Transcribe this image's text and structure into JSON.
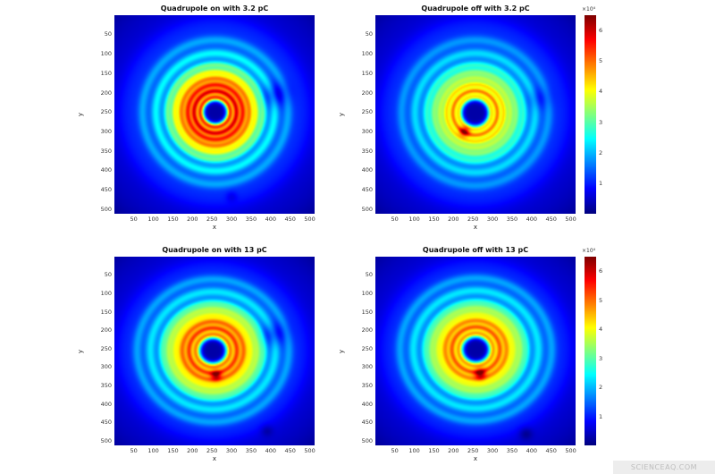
{
  "figure": {
    "background_color": "#ffffff",
    "watermark": "SCIENCEAQ.COM"
  },
  "axes": {
    "x_label": "x",
    "y_label": "y",
    "x_ticks": [
      50,
      100,
      150,
      200,
      250,
      300,
      350,
      400,
      450,
      500
    ],
    "y_ticks": [
      50,
      100,
      150,
      200,
      250,
      300,
      350,
      400,
      450,
      500
    ]
  },
  "colorbar": {
    "exponent_label": "×10⁴",
    "ticks": [
      1,
      2,
      3,
      4,
      5,
      6
    ],
    "range": [
      0,
      6.5
    ]
  },
  "chart_data": {
    "type": "heatmap",
    "colormap": "jet",
    "x_range": [
      1,
      512
    ],
    "y_range": [
      1,
      512
    ],
    "value_scale": 10000,
    "colorbar_range": [
      0,
      6.5
    ],
    "render_defaults": {
      "background": 0.5,
      "disc_level": 0.5,
      "disc_radius": 245,
      "disc_soft": 12,
      "core_amp": 1.1,
      "core_sigma": 140,
      "hole_level": 0.25,
      "fade_start": 250,
      "fade_width": 130,
      "fade_depth": 0.45,
      "vmax": 6.5
    },
    "panels": [
      {
        "title": "Quadrupole on with 3.2 pC",
        "center": [
          258,
          250
        ],
        "hole_radius": 26,
        "rings": [
          [
            38,
            3.4,
            8
          ],
          [
            54,
            3.8,
            8
          ],
          [
            70,
            3.5,
            9
          ],
          [
            87,
            3.0,
            10
          ],
          [
            104,
            2.2,
            9
          ],
          [
            122,
            1.6,
            10
          ],
          [
            152,
            1.1,
            12
          ],
          [
            186,
            0.7,
            12
          ]
        ],
        "spots": [
          [
            412,
            205,
            -0.9,
            22
          ],
          [
            300,
            468,
            -0.35,
            10
          ]
        ],
        "has_colorbar": false
      },
      {
        "title": "Quadrupole off with 3.2 pC",
        "center": [
          255,
          252
        ],
        "hole_radius": 30,
        "rings": [
          [
            42,
            2.2,
            8
          ],
          [
            57,
            2.8,
            8
          ],
          [
            73,
            2.3,
            9
          ],
          [
            90,
            1.8,
            10
          ],
          [
            106,
            1.5,
            9
          ],
          [
            124,
            1.2,
            10
          ],
          [
            154,
            0.9,
            12
          ],
          [
            188,
            0.6,
            12
          ]
        ],
        "spots": [
          [
            228,
            300,
            2.0,
            9
          ],
          [
            418,
            215,
            -0.5,
            20
          ]
        ],
        "has_colorbar": true
      },
      {
        "title": "Quadrupole on with 13 pC",
        "center": [
          252,
          255
        ],
        "hole_radius": 29,
        "rings": [
          [
            44,
            2.8,
            9
          ],
          [
            61,
            3.2,
            9
          ],
          [
            78,
            2.9,
            10
          ],
          [
            96,
            2.2,
            12
          ],
          [
            114,
            1.7,
            10
          ],
          [
            130,
            1.3,
            10
          ],
          [
            160,
            1.0,
            13
          ],
          [
            194,
            0.7,
            12
          ]
        ],
        "spots": [
          [
            260,
            322,
            1.8,
            9
          ],
          [
            408,
            210,
            -0.8,
            22
          ],
          [
            390,
            472,
            -0.4,
            11
          ]
        ],
        "has_colorbar": false
      },
      {
        "title": "Quadrupole off with 13 pC",
        "center": [
          257,
          252
        ],
        "hole_radius": 29,
        "rings": [
          [
            44,
            2.6,
            9
          ],
          [
            61,
            3.0,
            9
          ],
          [
            78,
            2.7,
            10
          ],
          [
            96,
            2.1,
            12
          ],
          [
            114,
            1.6,
            10
          ],
          [
            130,
            1.2,
            10
          ],
          [
            160,
            1.0,
            13
          ],
          [
            194,
            0.7,
            12
          ]
        ],
        "spots": [
          [
            268,
            318,
            2.0,
            10
          ],
          [
            385,
            480,
            -0.5,
            12
          ]
        ],
        "has_colorbar": true
      }
    ]
  }
}
